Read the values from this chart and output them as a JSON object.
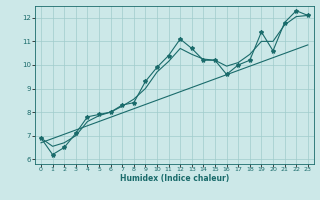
{
  "xlabel": "Humidex (Indice chaleur)",
  "ylabel": "",
  "xlim": [
    -0.5,
    23.5
  ],
  "ylim": [
    5.8,
    12.5
  ],
  "xticks": [
    0,
    1,
    2,
    3,
    4,
    5,
    6,
    7,
    8,
    9,
    10,
    11,
    12,
    13,
    14,
    15,
    16,
    17,
    18,
    19,
    20,
    21,
    22,
    23
  ],
  "yticks": [
    6,
    7,
    8,
    9,
    10,
    11,
    12
  ],
  "bg_color": "#cce8e8",
  "line_color": "#1a6b6b",
  "grid_color": "#a0cccc",
  "data_x": [
    0,
    1,
    2,
    3,
    4,
    5,
    6,
    7,
    8,
    9,
    10,
    11,
    12,
    13,
    14,
    15,
    16,
    17,
    18,
    19,
    20,
    21,
    22,
    23
  ],
  "data_y": [
    6.9,
    6.2,
    6.5,
    7.1,
    7.8,
    7.9,
    8.0,
    8.3,
    8.4,
    9.3,
    9.9,
    10.4,
    11.1,
    10.7,
    10.2,
    10.2,
    9.6,
    10.0,
    10.2,
    11.4,
    10.6,
    11.8,
    12.3,
    12.1
  ],
  "smooth_y": [
    6.9,
    6.55,
    6.7,
    7.0,
    7.6,
    7.85,
    8.0,
    8.25,
    8.55,
    9.0,
    9.7,
    10.15,
    10.7,
    10.45,
    10.25,
    10.2,
    9.95,
    10.1,
    10.45,
    11.0,
    11.0,
    11.7,
    12.05,
    12.1
  ],
  "trend_x0": 0,
  "trend_y0": 6.7,
  "trend_x1": 23,
  "trend_y1": 10.85
}
